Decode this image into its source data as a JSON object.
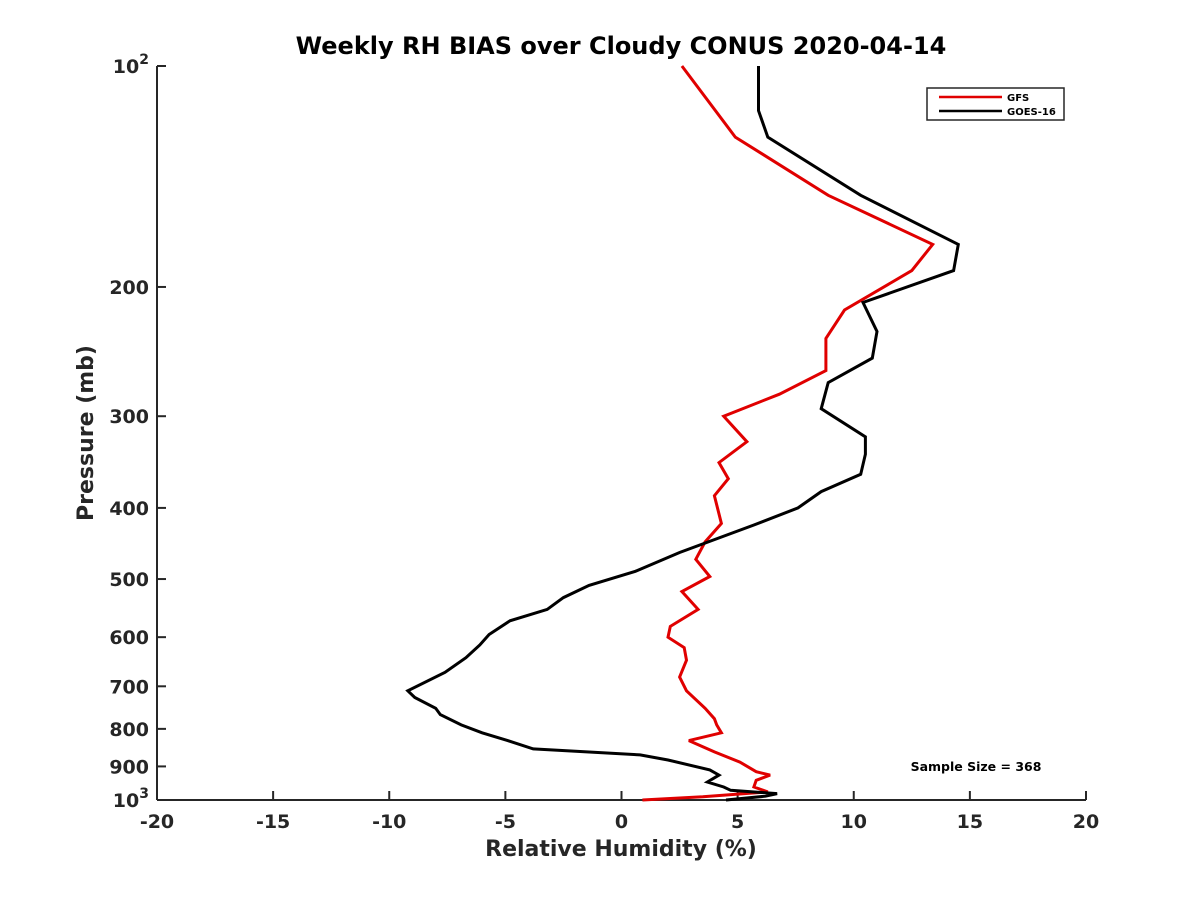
{
  "chart_data": {
    "type": "line",
    "title": "Weekly RH BIAS over Cloudy CONUS 2020-04-14",
    "xlabel": "Relative Humidity (%)",
    "ylabel": "Pressure (mb)",
    "xlim": [
      -20,
      20
    ],
    "ylim": [
      100,
      1000
    ],
    "y_scale": "log",
    "y_reversed": true,
    "grid": false,
    "legend_position": "top-right",
    "x_ticks": [
      -20,
      -15,
      -10,
      -5,
      0,
      5,
      10,
      15,
      20
    ],
    "x_tick_labels": [
      "-20",
      "-15",
      "-10",
      "-5",
      "0",
      "5",
      "10",
      "15",
      "20"
    ],
    "y_ticks": [
      100,
      200,
      300,
      400,
      500,
      600,
      700,
      800,
      900,
      1000
    ],
    "y_tick_labels": [
      {
        "base": "10",
        "exp": "2"
      },
      {
        "base": "200",
        "exp": ""
      },
      {
        "base": "300",
        "exp": ""
      },
      {
        "base": "400",
        "exp": ""
      },
      {
        "base": "500",
        "exp": ""
      },
      {
        "base": "600",
        "exp": ""
      },
      {
        "base": "700",
        "exp": ""
      },
      {
        "base": "800",
        "exp": ""
      },
      {
        "base": "900",
        "exp": ""
      },
      {
        "base": "10",
        "exp": "3"
      }
    ],
    "annotation": "Sample Size = 368",
    "series": [
      {
        "name": "GFS",
        "color": "#e00000",
        "points": [
          [
            2.6,
            100
          ],
          [
            4.9,
            125
          ],
          [
            8.9,
            150
          ],
          [
            13.4,
            175
          ],
          [
            12.5,
            190
          ],
          [
            9.6,
            215
          ],
          [
            8.8,
            235
          ],
          [
            8.8,
            260
          ],
          [
            6.8,
            280
          ],
          [
            4.4,
            300
          ],
          [
            5.4,
            325
          ],
          [
            4.2,
            347
          ],
          [
            4.6,
            365
          ],
          [
            4.0,
            385
          ],
          [
            4.3,
            420
          ],
          [
            3.6,
            445
          ],
          [
            3.2,
            470
          ],
          [
            3.8,
            496
          ],
          [
            2.6,
            520
          ],
          [
            3.3,
            550
          ],
          [
            2.1,
            580
          ],
          [
            2.0,
            600
          ],
          [
            2.7,
            620
          ],
          [
            2.8,
            645
          ],
          [
            2.5,
            680
          ],
          [
            2.8,
            710
          ],
          [
            3.6,
            750
          ],
          [
            4.0,
            775
          ],
          [
            4.1,
            790
          ],
          [
            4.3,
            810
          ],
          [
            2.9,
            830
          ],
          [
            4.0,
            860
          ],
          [
            5.1,
            888
          ],
          [
            5.8,
            915
          ],
          [
            6.4,
            925
          ],
          [
            5.8,
            940
          ],
          [
            5.7,
            960
          ],
          [
            6.3,
            975
          ],
          [
            3.5,
            990
          ],
          [
            0.9,
            1000
          ]
        ]
      },
      {
        "name": "GOES-16",
        "color": "#000000",
        "points": [
          [
            5.9,
            100
          ],
          [
            5.9,
            115
          ],
          [
            6.3,
            125
          ],
          [
            10.3,
            150
          ],
          [
            14.5,
            175
          ],
          [
            14.3,
            190
          ],
          [
            10.4,
            210
          ],
          [
            11.0,
            230
          ],
          [
            10.8,
            250
          ],
          [
            8.9,
            270
          ],
          [
            8.6,
            293
          ],
          [
            10.5,
            320
          ],
          [
            10.5,
            338
          ],
          [
            10.3,
            360
          ],
          [
            8.6,
            380
          ],
          [
            7.6,
            400
          ],
          [
            5.7,
            422
          ],
          [
            2.5,
            460
          ],
          [
            0.6,
            488
          ],
          [
            -1.4,
            510
          ],
          [
            -2.5,
            530
          ],
          [
            -3.2,
            550
          ],
          [
            -4.8,
            570
          ],
          [
            -5.7,
            595
          ],
          [
            -6.1,
            615
          ],
          [
            -6.7,
            640
          ],
          [
            -7.6,
            670
          ],
          [
            -9.2,
            710
          ],
          [
            -8.9,
            725
          ],
          [
            -8.0,
            750
          ],
          [
            -7.8,
            765
          ],
          [
            -6.9,
            790
          ],
          [
            -6.0,
            810
          ],
          [
            -4.9,
            830
          ],
          [
            -3.8,
            852
          ],
          [
            0.8,
            868
          ],
          [
            2.0,
            882
          ],
          [
            3.8,
            910
          ],
          [
            4.2,
            925
          ],
          [
            3.7,
            945
          ],
          [
            4.4,
            960
          ],
          [
            4.7,
            970
          ],
          [
            6.7,
            980
          ],
          [
            6.2,
            988
          ],
          [
            4.5,
            1000
          ]
        ]
      }
    ]
  }
}
